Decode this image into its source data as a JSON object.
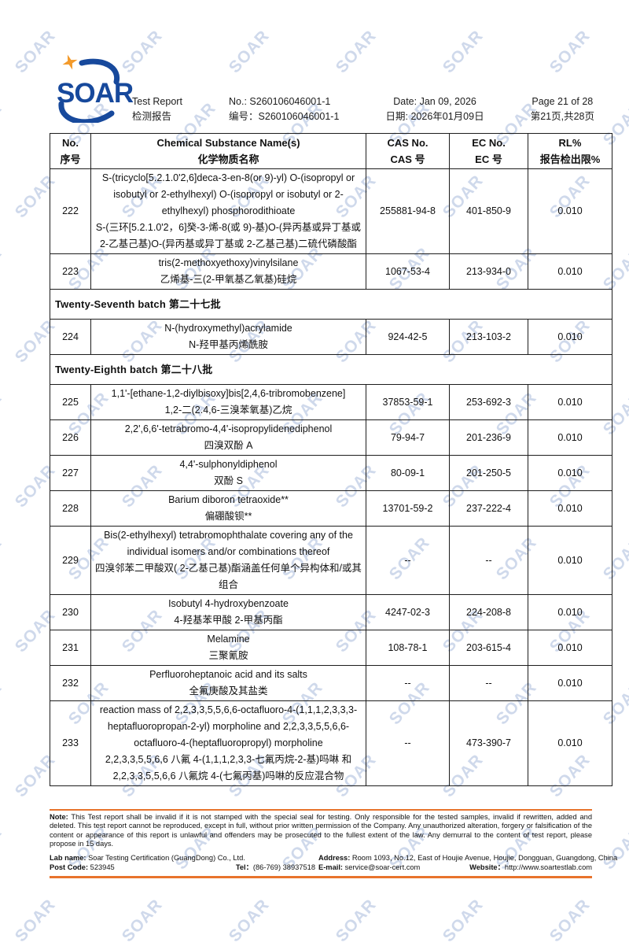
{
  "colors": {
    "logo-blue": "#17499c",
    "star-orange": "#f39a2b",
    "rule-orange": "#e8732c",
    "watermark": "#b3c2e0"
  },
  "watermark_text": "SOAR",
  "header": {
    "logo_text": "SOAR",
    "title_en": "Test Report",
    "title_zh": "检测报告",
    "no_en": "No.: S260106046001-1",
    "no_zh": "编号：S260106046001-1",
    "date_en": "Date: Jan 09, 2026",
    "date_zh": "日期: 2026年01月09日",
    "page_en": "Page 21 of 28",
    "page_zh": "第21页,共28页"
  },
  "table": {
    "columns": [
      {
        "en": "No.",
        "zh": "序号"
      },
      {
        "en": "Chemical Substance Name(s)",
        "zh": "化学物质名称"
      },
      {
        "en": "CAS No.",
        "zh": "CAS 号"
      },
      {
        "en": "EC No.",
        "zh": "EC 号"
      },
      {
        "en": "RL%",
        "zh": "报告检出限%"
      }
    ],
    "rows": [
      {
        "type": "substance",
        "no": "222",
        "name_en": "S-(tricyclo[5.2.1.0'2,6]deca-3-en-8(or 9)-yl) O-(isopropyl or isobutyl or 2-ethylhexyl) O-(isopropyl or isobutyl or 2-ethylhexyl) phosphorodithioate",
        "name_zh": "S-(三环[5.2.1.0'2，6]癸-3-烯-8(或 9)-基)O-(异丙基或异丁基或 2-乙基己基)O-(异丙基或异丁基或 2-乙基己基)二硫代磷酸酯",
        "cas": "255881-94-8",
        "ec": "401-850-9",
        "rl": "0.010"
      },
      {
        "type": "substance",
        "no": "223",
        "name_en": "tris(2-methoxyethoxy)vinylsilane",
        "name_zh": "乙烯基-三(2-甲氧基乙氧基)硅烷",
        "cas": "1067-53-4",
        "ec": "213-934-0",
        "rl": "0.010"
      },
      {
        "type": "batch",
        "label": "Twenty-Seventh batch  第二十七批"
      },
      {
        "type": "substance",
        "no": "224",
        "name_en": "N-(hydroxymethyl)acrylamide",
        "name_zh": "N-羟甲基丙烯酰胺",
        "cas": "924-42-5",
        "ec": "213-103-2",
        "rl": "0.010"
      },
      {
        "type": "batch",
        "label": "Twenty-Eighth batch  第二十八批"
      },
      {
        "type": "substance",
        "no": "225",
        "name_en": "1,1'-[ethane-1,2-diylbisoxy]bis[2,4,6-tribromobenzene]",
        "name_zh": "1,2-二(2.4,6-三溴苯氧基)乙烷",
        "cas": "37853-59-1",
        "ec": "253-692-3",
        "rl": "0.010"
      },
      {
        "type": "substance",
        "no": "226",
        "name_en": "2,2',6,6'-tetrabromo-4,4'-isopropylidenediphenol",
        "name_zh": "四溴双酚 A",
        "cas": "79-94-7",
        "ec": "201-236-9",
        "rl": "0.010"
      },
      {
        "type": "substance",
        "no": "227",
        "name_en": "4,4'-sulphonyldiphenol",
        "name_zh": "双酚 S",
        "cas": "80-09-1",
        "ec": "201-250-5",
        "rl": "0.010"
      },
      {
        "type": "substance",
        "no": "228",
        "name_en": "Barium diboron tetraoxide**",
        "name_zh": "偏硼酸钡**",
        "cas": "13701-59-2",
        "ec": "237-222-4",
        "rl": "0.010"
      },
      {
        "type": "substance",
        "no": "229",
        "name_en": "Bis(2-ethylhexyl) tetrabromophthalate covering any of the individual isomers and/or combinations thereof",
        "name_zh": "四溴邻苯二甲酸双( 2-乙基己基)酯涵盖任何单个异构体和/或其组合",
        "cas": "--",
        "ec": "--",
        "rl": "0.010"
      },
      {
        "type": "substance",
        "no": "230",
        "name_en": "Isobutyl 4-hydroxybenzoate",
        "name_zh": "4-羟基苯甲酸 2-甲基丙酯",
        "cas": "4247-02-3",
        "ec": "224-208-8",
        "rl": "0.010"
      },
      {
        "type": "substance",
        "no": "231",
        "name_en": "Melamine",
        "name_zh": "三聚氰胺",
        "cas": "108-78-1",
        "ec": "203-615-4",
        "rl": "0.010"
      },
      {
        "type": "substance",
        "no": "232",
        "name_en": "Perfluoroheptanoic acid and its salts",
        "name_zh": "全氟庚酸及其盐类",
        "cas": "--",
        "ec": "--",
        "rl": "0.010"
      },
      {
        "type": "substance",
        "no": "233",
        "name_en": "reaction mass of 2,2,3,3,5,5,6,6-octafluoro-4-(1,1,1,2,3,3,3-heptafluoropropan-2-yl) morpholine and 2,2,3,3,5,5,6,6-octafluoro-4-(heptafluoropropyl) morpholine",
        "name_zh": "2,2,3,3,5,5,6,6 八氟 4-(1,1,1,2,3,3-七氟丙烷-2-基)吗啉 和 2,2,3,3,5,5,6,6 八氟烷 4-(七氟丙基)吗啉的反应混合物",
        "cas": "--",
        "ec": "473-390-7",
        "rl": "0.010"
      }
    ]
  },
  "footer": {
    "note_label": "Note:",
    "note_text": " This Test report shall be invalid if it is not stamped with the special seal for testing. Only responsible for the tested samples, invalid if rewritten, added and deleted. This test report cannot be reproduced, except in full, without prior written permission of the Company. Any unauthorized alteration, forgery or falsification of the content or appearance of this report is unlawful and offenders may be prosecuted to the fullest extent of the law. Any demurral to the content of test report, please propose in 15 days.",
    "lab_name_label": "Lab name:",
    "lab_name": " Soar Testing Certification (GuangDong) Co., Ltd.",
    "post_code_label": "Post Code:",
    "post_code": " 523945",
    "tel_label": "Tel：",
    "tel": "(86-769) 38937518",
    "address_label": "Address:",
    "address": " Room 1093, No.12, East of Houjie Avenue, Houjie, Dongguan, Guangdong, China",
    "email_label": "E-mail:",
    "email": " service@soar-cert.com",
    "website_label": "Website：",
    "website": "http://www.soartestlab.com"
  }
}
